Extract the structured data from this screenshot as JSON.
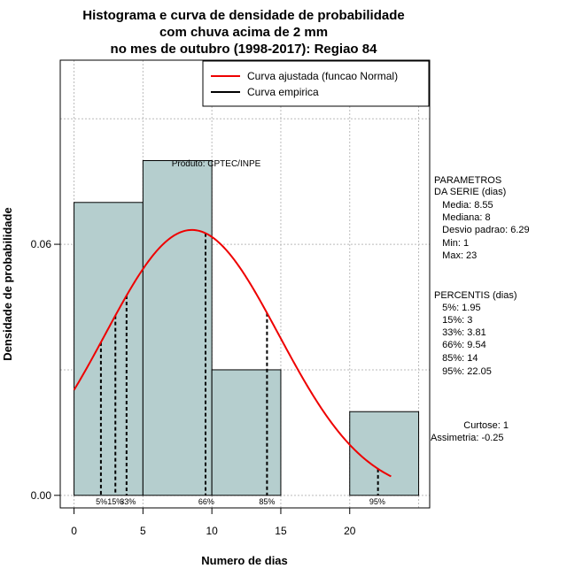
{
  "chart_data": {
    "type": "histogram",
    "title_lines": [
      "Histograma e curva de densidade de probabilidade",
      "com chuva acima de 2 mm",
      "no mes de outubro (1998-2017): Regiao 84"
    ],
    "xlabel": "Numero de dias",
    "ylabel": "Densidade de probabilidade",
    "xlim": [
      -1,
      25.8
    ],
    "ylim": [
      -0.003,
      0.104
    ],
    "x_ticks": [
      0,
      5,
      10,
      15,
      20
    ],
    "y_ticks": [
      0.0,
      0.06
    ],
    "y_tick_labels": [
      "0.00",
      "0.06"
    ],
    "grid_x": [
      0,
      5,
      10,
      15,
      20,
      25
    ],
    "grid_y": [
      0,
      0.03,
      0.06,
      0.09
    ],
    "bars": [
      {
        "x0": 0,
        "x1": 5,
        "density": 0.07
      },
      {
        "x0": 5,
        "x1": 10,
        "density": 0.08
      },
      {
        "x0": 10,
        "x1": 15,
        "density": 0.03
      },
      {
        "x0": 15,
        "x1": 20,
        "density": 0.0
      },
      {
        "x0": 20,
        "x1": 25,
        "density": 0.02
      }
    ],
    "bar_color": "#b5cece",
    "curve_color": "#ee0000",
    "normal_fit": {
      "mean": 8.55,
      "sd": 6.29,
      "x_from": 0,
      "x_to": 23
    },
    "percentiles": [
      {
        "label": "5%",
        "x": 1.95
      },
      {
        "label": "15%",
        "x": 3
      },
      {
        "label": "33%",
        "x": 3.81
      },
      {
        "label": "66%",
        "x": 9.54
      },
      {
        "label": "85%",
        "x": 14
      },
      {
        "label": "95%",
        "x": 22.05
      }
    ],
    "percentile_tick_labels": [
      {
        "text": "5%",
        "x": 2.0
      },
      {
        "text": "15%",
        "x": 3.0
      },
      {
        "text": "33%",
        "x": 3.9
      },
      {
        "text": "66%",
        "x": 9.6
      },
      {
        "text": "85%",
        "x": 14.0
      },
      {
        "text": "95%",
        "x": 22.0
      }
    ],
    "legend": {
      "placement": "top-right",
      "entries": [
        {
          "label": "Curva ajustada (funcao Normal)",
          "color": "#ee0000"
        },
        {
          "label": "Curva empirica",
          "color": "#000000"
        }
      ]
    },
    "annotation": "Produto: CPTEC/INPE"
  },
  "side_panel": {
    "params_lines": [
      "PARAMETROS",
      "DA SERIE (dias)",
      "   Media: 8.55",
      "   Mediana: 8",
      "   Desvio padrao: 6.29",
      "   Min: 1",
      "   Max: 23"
    ],
    "percentis_lines": [
      "PERCENTIS (dias)",
      "   5%: 1.95",
      "   15%: 3",
      "   33%: 3.81",
      "   66%: 9.54",
      "   85%: 14",
      "   95%: 22.05"
    ],
    "curtose": "Curtose: 1",
    "assimetria": "Assimetria: -0.25"
  }
}
